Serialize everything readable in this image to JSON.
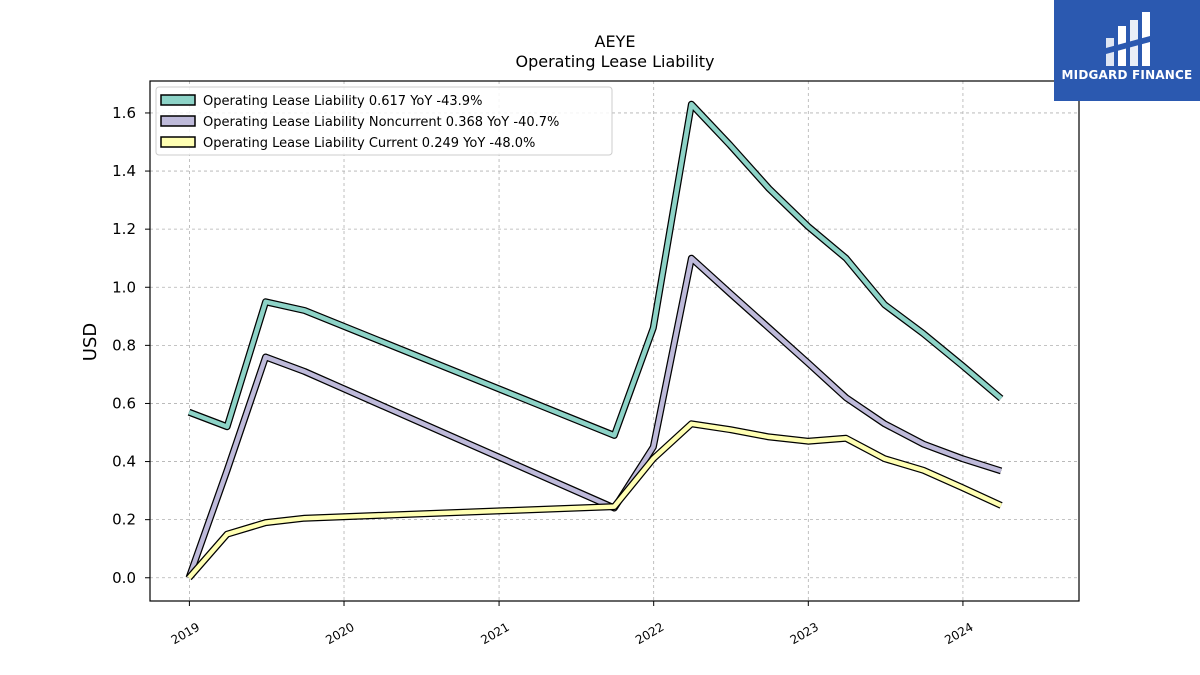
{
  "brand": {
    "name": "MIDGARD FINANCE",
    "bg_color": "#2b59b0"
  },
  "chart_data": {
    "type": "line",
    "title": "AEYE",
    "subtitle": "Operating Lease Liability",
    "xlabel": "",
    "ylabel": "USD",
    "ylim": [
      -0.08,
      1.71
    ],
    "xlim": [
      "2018-09-30",
      "2024-10-01"
    ],
    "y_ticks": [
      0.0,
      0.2,
      0.4,
      0.6,
      0.8,
      1.0,
      1.2,
      1.4,
      1.6
    ],
    "y_tick_labels": [
      "0.0",
      "0.2",
      "0.4",
      "0.6",
      "0.8",
      "1.0",
      "1.2",
      "1.4",
      "1.6"
    ],
    "x_ticks": [
      "2019-01-01",
      "2020-01-01",
      "2021-01-01",
      "2022-01-01",
      "2023-01-01",
      "2024-01-01"
    ],
    "x_tick_labels": [
      "2019",
      "2020",
      "2021",
      "2022",
      "2023",
      "2024"
    ],
    "grid": true,
    "legend_position": "top-left",
    "series": [
      {
        "name": "Operating Lease Liability  0.617 YoY -43.9%",
        "color": "#8dd3c7",
        "points": [
          [
            "2018-12-31",
            0.57
          ],
          [
            "2019-03-31",
            0.52
          ],
          [
            "2019-06-30",
            0.95
          ],
          [
            "2019-09-30",
            0.92
          ],
          [
            "2021-09-30",
            0.49
          ],
          [
            "2021-12-31",
            0.86
          ],
          [
            "2022-03-31",
            1.63
          ],
          [
            "2022-06-30",
            1.49
          ],
          [
            "2022-09-30",
            1.34
          ],
          [
            "2022-12-31",
            1.21
          ],
          [
            "2023-03-31",
            1.1
          ],
          [
            "2023-06-30",
            0.94
          ],
          [
            "2023-09-30",
            0.84
          ],
          [
            "2023-12-31",
            0.73
          ],
          [
            "2024-03-31",
            0.617
          ]
        ]
      },
      {
        "name": "Operating Lease Liability Noncurrent  0.368 YoY -40.7%",
        "color": "#bebada",
        "points": [
          [
            "2018-12-31",
            0.0
          ],
          [
            "2019-03-31",
            0.37
          ],
          [
            "2019-06-30",
            0.76
          ],
          [
            "2019-09-30",
            0.71
          ],
          [
            "2021-09-30",
            0.24
          ],
          [
            "2021-12-31",
            0.45
          ],
          [
            "2022-03-31",
            1.1
          ],
          [
            "2022-06-30",
            0.98
          ],
          [
            "2022-09-30",
            0.86
          ],
          [
            "2022-12-31",
            0.74
          ],
          [
            "2023-03-31",
            0.62
          ],
          [
            "2023-06-30",
            0.53
          ],
          [
            "2023-09-30",
            0.46
          ],
          [
            "2023-12-31",
            0.41
          ],
          [
            "2024-03-31",
            0.368
          ]
        ]
      },
      {
        "name": "Operating Lease Liability Current  0.249 YoY -48.0%",
        "color": "#ffffb3",
        "points": [
          [
            "2018-12-31",
            0.0
          ],
          [
            "2019-03-31",
            0.15
          ],
          [
            "2019-06-30",
            0.19
          ],
          [
            "2019-09-30",
            0.205
          ],
          [
            "2021-09-30",
            0.245
          ],
          [
            "2021-12-31",
            0.41
          ],
          [
            "2022-03-31",
            0.53
          ],
          [
            "2022-06-30",
            0.51
          ],
          [
            "2022-09-30",
            0.485
          ],
          [
            "2022-12-31",
            0.47
          ],
          [
            "2023-03-31",
            0.48
          ],
          [
            "2023-06-30",
            0.41
          ],
          [
            "2023-09-30",
            0.37
          ],
          [
            "2023-12-31",
            0.31
          ],
          [
            "2024-03-31",
            0.249
          ]
        ]
      }
    ]
  }
}
